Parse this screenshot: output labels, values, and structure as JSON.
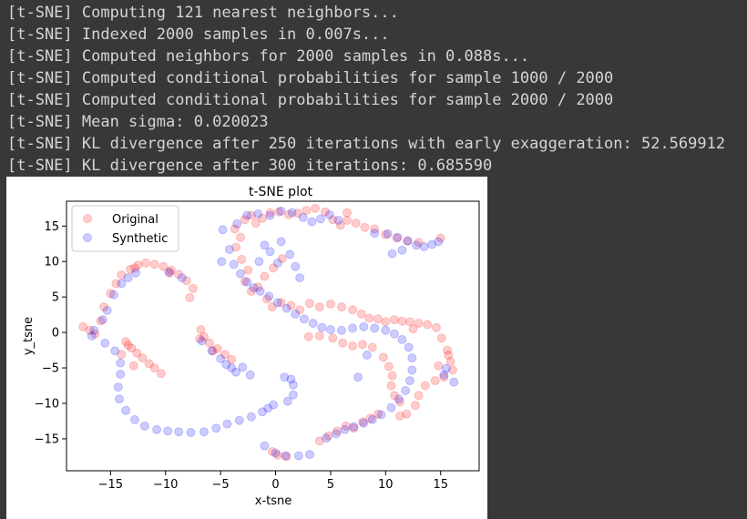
{
  "console": {
    "lines": [
      "[t-SNE] Computing 121 nearest neighbors...",
      "[t-SNE] Indexed 2000 samples in 0.007s...",
      "[t-SNE] Computed neighbors for 2000 samples in 0.088s...",
      "[t-SNE] Computed conditional probabilities for sample 1000 / 2000",
      "[t-SNE] Computed conditional probabilities for sample 2000 / 2000",
      "[t-SNE] Mean sigma: 0.020023",
      "[t-SNE] KL divergence after 250 iterations with early exaggeration: 52.569912",
      "[t-SNE] KL divergence after 300 iterations: 0.685590"
    ]
  },
  "chart_data": {
    "type": "scatter",
    "title": "t-SNE plot",
    "xlabel": "x-tsne",
    "ylabel": "y_tsne",
    "xlim": [
      -19,
      18.5
    ],
    "ylim": [
      -19.5,
      18.5
    ],
    "xticks": [
      -15,
      -10,
      -5,
      0,
      5,
      10,
      15
    ],
    "yticks": [
      15,
      10,
      5,
      0,
      -5,
      -10,
      -15
    ],
    "grid": false,
    "legend_position": "upper-left",
    "series": [
      {
        "name": "Original",
        "color": "#ff0000",
        "alpha": 0.2,
        "points": [
          [
            -17.5,
            0.8
          ],
          [
            -16.9,
            0.3
          ],
          [
            -16.4,
            -0.2
          ],
          [
            -15.9,
            1.6
          ],
          [
            -15.6,
            3.6
          ],
          [
            -15,
            5.5
          ],
          [
            -14.5,
            6.9
          ],
          [
            -14,
            8.1
          ],
          [
            -13.2,
            8.9
          ],
          [
            -12.5,
            9.5
          ],
          [
            -11.8,
            9.8
          ],
          [
            -11,
            9.6
          ],
          [
            -10.2,
            9.3
          ],
          [
            -9.5,
            8.8
          ],
          [
            -8.8,
            8.2
          ],
          [
            -8.1,
            7.3
          ],
          [
            -7.5,
            6.2
          ],
          [
            -7.8,
            4.9
          ],
          [
            -9.6,
            8.4
          ],
          [
            -12.8,
            9.1
          ],
          [
            -13.6,
            -1.3
          ],
          [
            -13.1,
            -2.2
          ],
          [
            -12.6,
            -2.9
          ],
          [
            -12.1,
            -3.6
          ],
          [
            -11.5,
            -4.4
          ],
          [
            -11,
            -5
          ],
          [
            -10.4,
            -5.8
          ],
          [
            -12.9,
            -4.7
          ],
          [
            -14,
            -3.1
          ],
          [
            -13.4,
            -1.8
          ],
          [
            -6.8,
            0.4
          ],
          [
            -6.5,
            -0.6
          ],
          [
            -6,
            -1.5
          ],
          [
            -5.3,
            -2.3
          ],
          [
            -4.6,
            -3.1
          ],
          [
            -4,
            -3.8
          ],
          [
            -5.7,
            -2.6
          ],
          [
            -6.9,
            -0.9
          ],
          [
            -3.7,
            14.6
          ],
          [
            -2.8,
            15.9
          ],
          [
            -2.2,
            16.5
          ],
          [
            -1.8,
            15.4
          ],
          [
            -1.2,
            16.1
          ],
          [
            -0.5,
            16.9
          ],
          [
            0.3,
            17
          ],
          [
            1.2,
            16.6
          ],
          [
            2,
            16.8
          ],
          [
            2.8,
            17.2
          ],
          [
            3.6,
            17.5
          ],
          [
            4.5,
            17
          ],
          [
            5.2,
            15.9
          ],
          [
            5.9,
            15.1
          ],
          [
            6.5,
            15.8
          ],
          [
            7.3,
            15.4
          ],
          [
            8.1,
            14.8
          ],
          [
            9,
            14.6
          ],
          [
            10,
            13.8
          ],
          [
            11,
            13.3
          ],
          [
            12,
            12.9
          ],
          [
            15,
            13.3
          ],
          [
            13,
            12.7
          ],
          [
            -3.2,
            13.4
          ],
          [
            -3.6,
            12
          ],
          [
            -3.1,
            10.3
          ],
          [
            -2.5,
            8.8
          ],
          [
            -2.8,
            7.2
          ],
          [
            -2.2,
            5.8
          ],
          [
            -1.6,
            6.4
          ],
          [
            -1,
            7.9
          ],
          [
            -0.2,
            9.1
          ],
          [
            0.6,
            10.4
          ],
          [
            -0.8,
            4.7
          ],
          [
            -0.3,
            3.6
          ],
          [
            0.5,
            4.2
          ],
          [
            1.4,
            3.8
          ],
          [
            2.2,
            3.2
          ],
          [
            3.1,
            4.1
          ],
          [
            4,
            3.6
          ],
          [
            5,
            4
          ],
          [
            6,
            3.6
          ],
          [
            7,
            3.2
          ],
          [
            7.8,
            2.6
          ],
          [
            8.5,
            2
          ],
          [
            9.3,
            1.9
          ],
          [
            10,
            1.5
          ],
          [
            10.8,
            1.8
          ],
          [
            11.5,
            1.6
          ],
          [
            12.2,
            1.5
          ],
          [
            13,
            1.3
          ],
          [
            13.8,
            1.1
          ],
          [
            14.6,
            0.7
          ],
          [
            15.1,
            -0.8
          ],
          [
            15.6,
            -2.5
          ],
          [
            15.9,
            -4.1
          ],
          [
            16.1,
            -5.3
          ],
          [
            15.3,
            -6.3
          ],
          [
            14.5,
            -6.8
          ],
          [
            13.6,
            -7.5
          ],
          [
            13,
            -8.9
          ],
          [
            12.7,
            -10.3
          ],
          [
            11.9,
            -11.5
          ],
          [
            11.3,
            -11.8
          ],
          [
            3,
            -0.6
          ],
          [
            4,
            -0.5
          ],
          [
            5.2,
            -0.8
          ],
          [
            6.1,
            -1.5
          ],
          [
            7,
            -1.9
          ],
          [
            7.9,
            -1.7
          ],
          [
            8.8,
            -2.1
          ],
          [
            9.8,
            -3.5
          ],
          [
            10.3,
            -4.8
          ],
          [
            10.6,
            -6.1
          ],
          [
            10.5,
            -7.5
          ],
          [
            10.8,
            -8.9
          ],
          [
            11.3,
            -9.8
          ],
          [
            4,
            -15.3
          ],
          [
            4.8,
            -14.6
          ],
          [
            5.6,
            -13.9
          ],
          [
            6.4,
            -13.2
          ],
          [
            7.1,
            -13.5
          ],
          [
            7.9,
            -12.6
          ],
          [
            8.6,
            -12.1
          ],
          [
            9.3,
            -11.5
          ],
          [
            0.2,
            -17.3
          ],
          [
            1,
            -17.5
          ],
          [
            -0.3,
            -16.8
          ],
          [
            6.5,
            16.9
          ],
          [
            12.5,
            0.5
          ],
          [
            15.7,
            -3.2
          ],
          [
            14.8,
            -4.7
          ]
        ]
      },
      {
        "name": "Synthetic",
        "color": "#0000ff",
        "alpha": 0.2,
        "points": [
          [
            -16.5,
            0.3
          ],
          [
            -15.7,
            1.8
          ],
          [
            -15.3,
            3.1
          ],
          [
            -14.7,
            5.3
          ],
          [
            -14,
            6.9
          ],
          [
            -13.4,
            7.7
          ],
          [
            -12.7,
            8.4
          ],
          [
            -16.7,
            -0.5
          ],
          [
            -15.5,
            -1.5
          ],
          [
            -14.6,
            -2.6
          ],
          [
            -14.1,
            -4.3
          ],
          [
            -14.1,
            -5.9
          ],
          [
            -14.3,
            -7.7
          ],
          [
            -14.2,
            -9.4
          ],
          [
            -13.6,
            -11
          ],
          [
            -12.8,
            -12.3
          ],
          [
            -11.9,
            -13.2
          ],
          [
            -10.8,
            -13.7
          ],
          [
            -9.8,
            -13.9
          ],
          [
            -8.8,
            -14
          ],
          [
            -7.7,
            -14.1
          ],
          [
            -6.5,
            -14
          ],
          [
            -5.4,
            -13.5
          ],
          [
            -4.4,
            -12.9
          ],
          [
            -3.3,
            -12.4
          ],
          [
            -2.2,
            -11.9
          ],
          [
            -1.2,
            -11.2
          ],
          [
            -0.2,
            -10.2
          ],
          [
            -0.7,
            -10.7
          ],
          [
            1.1,
            -9.7
          ],
          [
            1.6,
            -8.8
          ],
          [
            1.6,
            -7.4
          ],
          [
            1.4,
            -6.6
          ],
          [
            0.8,
            -6.3
          ],
          [
            -6.7,
            -1.2
          ],
          [
            -5.8,
            -2.6
          ],
          [
            -5,
            -3.7
          ],
          [
            -4.5,
            -4.5
          ],
          [
            -4,
            -5
          ],
          [
            -3,
            -4.9
          ],
          [
            -1,
            -16
          ],
          [
            0,
            -17
          ],
          [
            0.9,
            -17.4
          ],
          [
            2.1,
            -17.4
          ],
          [
            3.1,
            -17.2
          ],
          [
            -4.8,
            14.5
          ],
          [
            -4.9,
            10
          ],
          [
            -4.2,
            11.7
          ],
          [
            -3.5,
            15.3
          ],
          [
            -2.6,
            16.5
          ],
          [
            -1.6,
            16.7
          ],
          [
            -0.5,
            16.5
          ],
          [
            0.5,
            17.1
          ],
          [
            1.5,
            16.9
          ],
          [
            2.5,
            16.2
          ],
          [
            3.3,
            15.6
          ],
          [
            4.1,
            16
          ],
          [
            4.9,
            16.6
          ],
          [
            5.7,
            15.8
          ],
          [
            9,
            14
          ],
          [
            10.2,
            13.9
          ],
          [
            11.1,
            13.4
          ],
          [
            12,
            12.9
          ],
          [
            12.8,
            12.3
          ],
          [
            13.5,
            12.1
          ],
          [
            14.2,
            12.4
          ],
          [
            14.8,
            12.8
          ],
          [
            11.5,
            11.6
          ],
          [
            10.6,
            11.1
          ],
          [
            -3.8,
            9.6
          ],
          [
            -3.2,
            8.3
          ],
          [
            -2.6,
            7.1
          ],
          [
            -2,
            6.3
          ],
          [
            -1.4,
            5.8
          ],
          [
            -0.6,
            5.1
          ],
          [
            0.2,
            4.2
          ],
          [
            1,
            3.4
          ],
          [
            1.8,
            2.6
          ],
          [
            2.6,
            1.9
          ],
          [
            3.4,
            1.3
          ],
          [
            4.2,
            0.7
          ],
          [
            5,
            0.4
          ],
          [
            6,
            0.3
          ],
          [
            7,
            0.6
          ],
          [
            8,
            0.8
          ],
          [
            9,
            0.6
          ],
          [
            10,
            0.3
          ],
          [
            10.8,
            -0.2
          ],
          [
            11.5,
            -1
          ],
          [
            12.1,
            -2.1
          ],
          [
            12.4,
            -3.6
          ],
          [
            12.4,
            -5.3
          ],
          [
            12.2,
            -6.8
          ],
          [
            11.8,
            -8.2
          ],
          [
            11.2,
            -9.4
          ],
          [
            10.5,
            -10.6
          ],
          [
            9.6,
            -11.6
          ],
          [
            8.8,
            -12.3
          ],
          [
            8,
            -12.8
          ],
          [
            7.1,
            -13.3
          ],
          [
            6.3,
            -13.7
          ],
          [
            5.5,
            -14.3
          ],
          [
            4.6,
            -14.9
          ],
          [
            -0.5,
            11.4
          ],
          [
            0.2,
            9.8
          ],
          [
            -1.5,
            10
          ],
          [
            -1,
            12.3
          ],
          [
            0.5,
            12.8
          ],
          [
            1.3,
            11
          ],
          [
            1.8,
            9.3
          ],
          [
            2.2,
            7.7
          ],
          [
            15.3,
            -6
          ],
          [
            16.2,
            -7
          ],
          [
            15.5,
            -5.1
          ],
          [
            -9.7,
            8.5
          ],
          [
            -8.5,
            7.7
          ],
          [
            -2.3,
            -6
          ],
          [
            -3.6,
            -5.6
          ],
          [
            7.5,
            -6.3
          ],
          [
            8.3,
            -3.2
          ]
        ]
      }
    ]
  }
}
